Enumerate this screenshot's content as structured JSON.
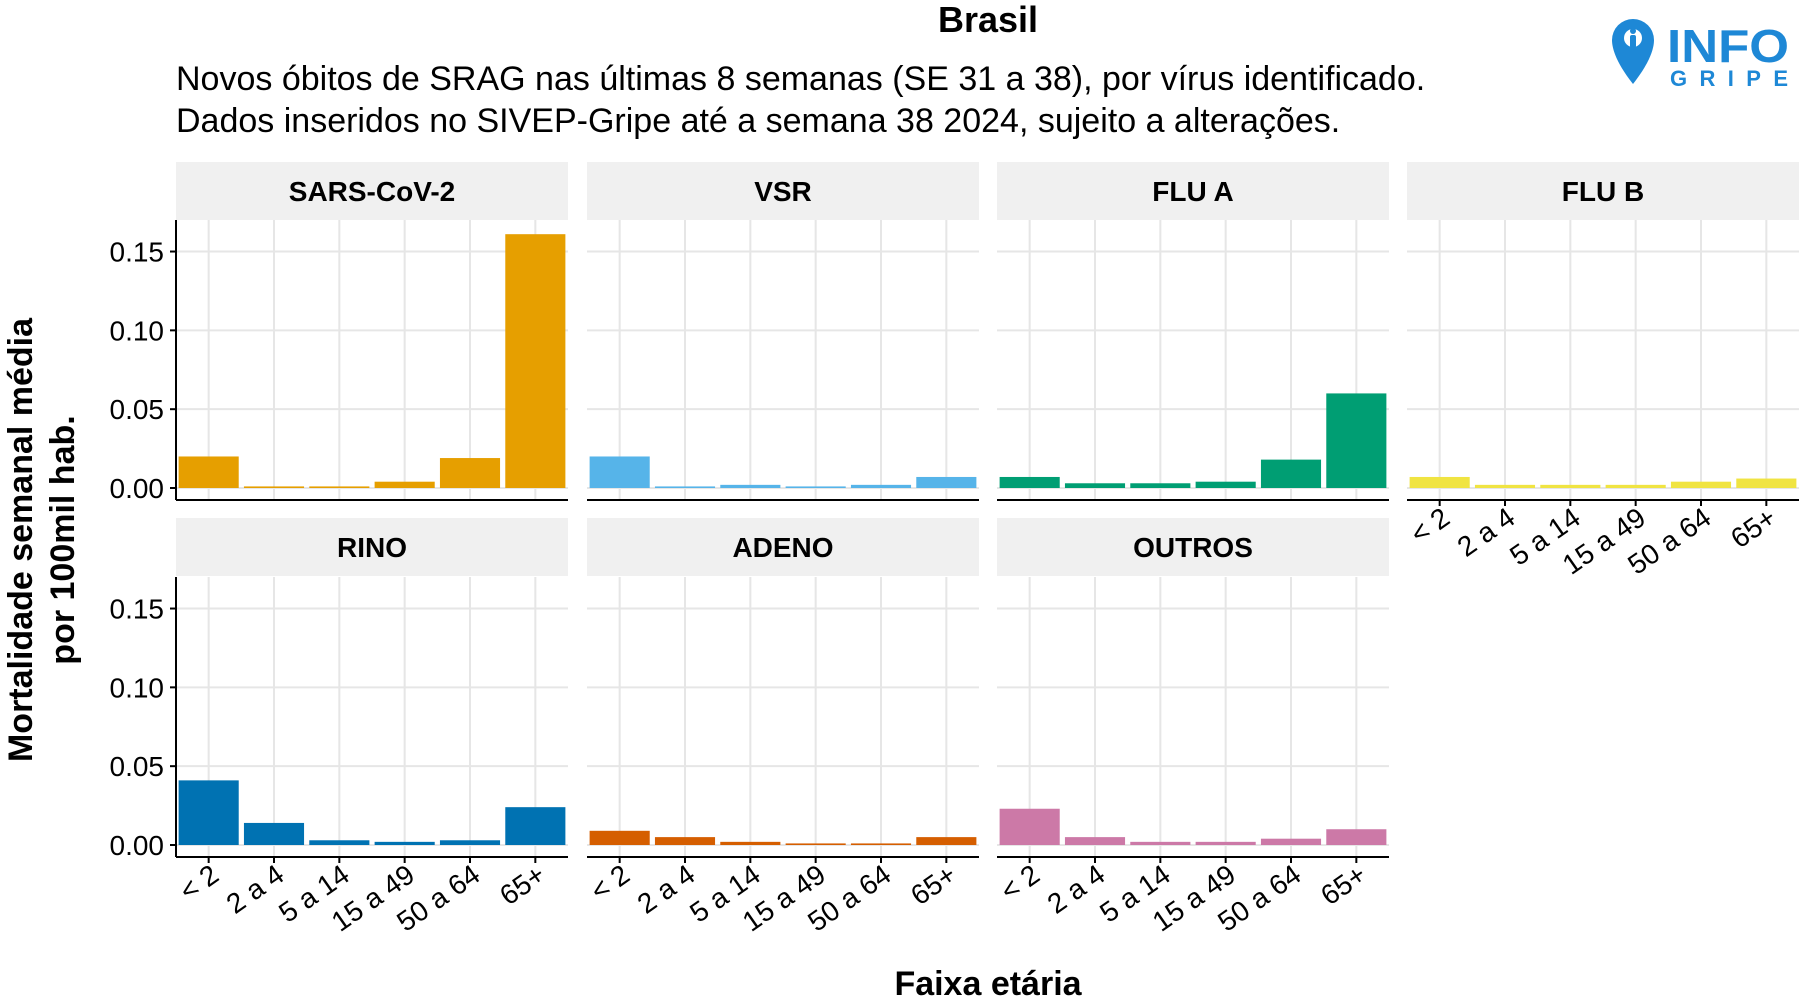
{
  "page": {
    "title": "Brasil",
    "subtitle_line1": "Novos óbitos de SRAG nas últimas 8 semanas (SE 31 a 38), por vírus identificado.",
    "subtitle_line2": "Dados inseridos no SIVEP-Gripe até a semana 38 2024, sujeito a alterações."
  },
  "logo": {
    "line1": "INFO",
    "line2": "GRIPE",
    "icon": "map-pin-icon",
    "color": "#1e88d6"
  },
  "chart_data": {
    "type": "bar",
    "facet_layout": "4 columns x 2 rows",
    "xlabel": "Faixa etária",
    "ylabel_line1": "Mortalidade  semanal média",
    "ylabel_line2": "por 100mil hab.",
    "categories": [
      "< 2",
      "2 a 4",
      "5 a 14",
      "15 a 49",
      "50 a 64",
      "65+"
    ],
    "ylim": [
      0,
      0.17
    ],
    "yticks": [
      0.0,
      0.05,
      0.1,
      0.15
    ],
    "ytick_labels": [
      "0.00",
      "0.05",
      "0.10",
      "0.15"
    ],
    "grid": true,
    "series": [
      {
        "name": "SARS-CoV-2",
        "color": "#E69F00",
        "values": [
          0.02,
          0.001,
          0.001,
          0.004,
          0.019,
          0.161
        ]
      },
      {
        "name": "VSR",
        "color": "#56B4E9",
        "values": [
          0.02,
          0.001,
          0.002,
          0.001,
          0.002,
          0.007
        ]
      },
      {
        "name": "FLU A",
        "color": "#009E73",
        "values": [
          0.007,
          0.003,
          0.003,
          0.004,
          0.018,
          0.06
        ]
      },
      {
        "name": "FLU B",
        "color": "#F0E442",
        "values": [
          0.007,
          0.002,
          0.002,
          0.002,
          0.004,
          0.006
        ]
      },
      {
        "name": "RINO",
        "color": "#0072B2",
        "values": [
          0.041,
          0.014,
          0.003,
          0.002,
          0.003,
          0.024
        ]
      },
      {
        "name": "ADENO",
        "color": "#D55E00",
        "values": [
          0.009,
          0.005,
          0.002,
          0.001,
          0.001,
          0.005
        ]
      },
      {
        "name": "OUTROS",
        "color": "#CC79A7",
        "values": [
          0.023,
          0.005,
          0.002,
          0.002,
          0.004,
          0.01
        ]
      }
    ]
  }
}
